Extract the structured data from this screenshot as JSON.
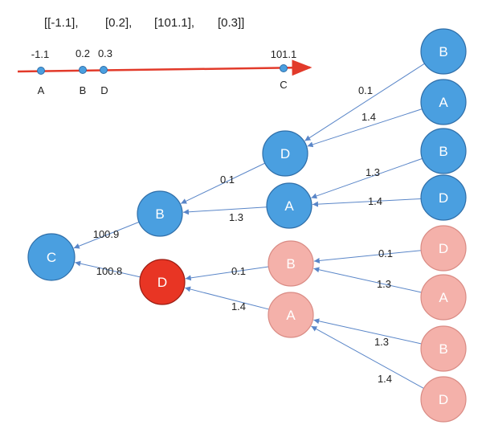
{
  "header": {
    "coords": [
      "[[-1.1],",
      "[0.2],",
      "[101.1],",
      "[0.3]]"
    ]
  },
  "axis": {
    "points": [
      {
        "letter": "A",
        "value": "-1.1"
      },
      {
        "letter": "B",
        "value": "0.2"
      },
      {
        "letter": "D",
        "value": "0.3"
      },
      {
        "letter": "C",
        "value": "101.1"
      }
    ]
  },
  "colors": {
    "blue": "#4a9fe0",
    "blue_stroke": "#2f6ea8",
    "pink": "#f4b1aa",
    "pink_stroke": "#d98b84",
    "red": "#e83524",
    "red_stroke": "#9a1c12",
    "axis": "#e23a2a",
    "edge": "#5a86c8"
  },
  "tree": {
    "nodes": [
      {
        "id": "root",
        "label": "C",
        "color": "blue"
      },
      {
        "id": "l1_b",
        "label": "B",
        "color": "blue"
      },
      {
        "id": "l1_d",
        "label": "D",
        "color": "red"
      },
      {
        "id": "l2_d",
        "label": "D",
        "color": "blue"
      },
      {
        "id": "l2_a",
        "label": "A",
        "color": "blue"
      },
      {
        "id": "l2_b2",
        "label": "B",
        "color": "pink"
      },
      {
        "id": "l2_a2",
        "label": "A",
        "color": "pink"
      },
      {
        "id": "l3_1",
        "label": "B",
        "color": "blue"
      },
      {
        "id": "l3_2",
        "label": "A",
        "color": "blue"
      },
      {
        "id": "l3_3",
        "label": "B",
        "color": "blue"
      },
      {
        "id": "l3_4",
        "label": "D",
        "color": "blue"
      },
      {
        "id": "l3_5",
        "label": "D",
        "color": "pink"
      },
      {
        "id": "l3_6",
        "label": "A",
        "color": "pink"
      },
      {
        "id": "l3_7",
        "label": "B",
        "color": "pink"
      },
      {
        "id": "l3_8",
        "label": "D",
        "color": "pink"
      }
    ],
    "edges": [
      {
        "from": "l1_b",
        "to": "root",
        "label": "100.9"
      },
      {
        "from": "l1_d",
        "to": "root",
        "label": "100.8"
      },
      {
        "from": "l2_d",
        "to": "l1_b",
        "label": "0.1"
      },
      {
        "from": "l2_a",
        "to": "l1_b",
        "label": "1.3"
      },
      {
        "from": "l2_b2",
        "to": "l1_d",
        "label": "0.1"
      },
      {
        "from": "l2_a2",
        "to": "l1_d",
        "label": "1.4"
      },
      {
        "from": "l3_1",
        "to": "l2_d",
        "label": "0.1"
      },
      {
        "from": "l3_2",
        "to": "l2_d",
        "label": "1.4"
      },
      {
        "from": "l3_3",
        "to": "l2_a",
        "label": "1.3"
      },
      {
        "from": "l3_4",
        "to": "l2_a",
        "label": "1.4"
      },
      {
        "from": "l3_5",
        "to": "l2_b2",
        "label": "0.1"
      },
      {
        "from": "l3_6",
        "to": "l2_b2",
        "label": "1.3"
      },
      {
        "from": "l3_7",
        "to": "l2_a2",
        "label": "1.3"
      },
      {
        "from": "l3_8",
        "to": "l2_a2",
        "label": "1.4"
      }
    ]
  }
}
